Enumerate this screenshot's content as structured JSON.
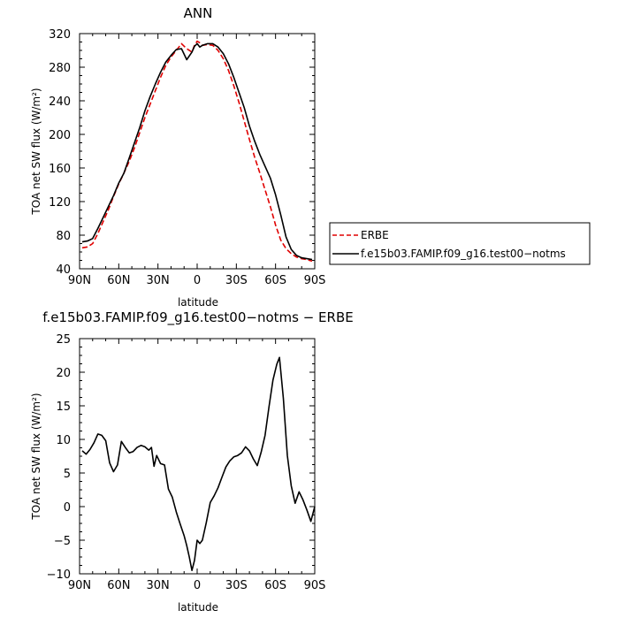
{
  "chart_data": [
    {
      "type": "line",
      "title": "ANN",
      "xlabel": "latitude",
      "ylabel": "TOA net SW flux (W/m²)",
      "xlim": [
        90,
        -90
      ],
      "ylim": [
        40,
        320
      ],
      "x_ticks": [
        "90N",
        "60N",
        "30N",
        "0",
        "30S",
        "60S",
        "90S"
      ],
      "x_tick_values": [
        90,
        60,
        30,
        0,
        -30,
        -60,
        -90
      ],
      "y_ticks": [
        40,
        80,
        120,
        160,
        200,
        240,
        280,
        320
      ],
      "grid": false,
      "legend_position": "right",
      "series": [
        {
          "name": "ERBE",
          "color": "#e00000",
          "dash": "dashed",
          "x": [
            88,
            84,
            80,
            76,
            72,
            68,
            64,
            60,
            56,
            52,
            48,
            44,
            40,
            36,
            32,
            28,
            24,
            20,
            16,
            12,
            8,
            4,
            2,
            0,
            -2,
            -4,
            -8,
            -12,
            -16,
            -20,
            -24,
            -28,
            -32,
            -36,
            -40,
            -44,
            -48,
            -52,
            -56,
            -60,
            -64,
            -68,
            -72,
            -76,
            -80,
            -84,
            -88
          ],
          "values": [
            65,
            66,
            70,
            82,
            96,
            110,
            126,
            141,
            154,
            168,
            184,
            202,
            220,
            236,
            252,
            268,
            282,
            292,
            300,
            308,
            302,
            298,
            306,
            311,
            309,
            306,
            307,
            306,
            300,
            290,
            276,
            258,
            238,
            216,
            194,
            173,
            154,
            134,
            114,
            92,
            74,
            64,
            58,
            54,
            52,
            51,
            49
          ]
        },
        {
          "name": "f.e15b03.FAMIP.f09_g16.test00−notms",
          "color": "#000000",
          "dash": "solid",
          "x": [
            88,
            84,
            80,
            76,
            72,
            68,
            64,
            60,
            56,
            52,
            48,
            44,
            40,
            36,
            32,
            28,
            24,
            20,
            16,
            12,
            8,
            4,
            2,
            0,
            -2,
            -4,
            -8,
            -12,
            -16,
            -20,
            -24,
            -28,
            -32,
            -36,
            -40,
            -44,
            -48,
            -52,
            -56,
            -60,
            -64,
            -68,
            -72,
            -76,
            -80,
            -84,
            -88
          ],
          "values": [
            72,
            73,
            76,
            88,
            101,
            114,
            127,
            142,
            154,
            172,
            190,
            208,
            228,
            245,
            260,
            274,
            286,
            294,
            301,
            302,
            289,
            298,
            305,
            308,
            304,
            306,
            308,
            308,
            304,
            296,
            284,
            268,
            250,
            232,
            210,
            192,
            176,
            162,
            148,
            128,
            104,
            78,
            63,
            56,
            53,
            52,
            51
          ]
        }
      ]
    },
    {
      "type": "line",
      "title": "f.e15b03.FAMIP.f09_g16.test00−notms − ERBE",
      "xlabel": "latitude",
      "ylabel": "TOA net SW flux (W/m²)",
      "xlim": [
        90,
        -90
      ],
      "ylim": [
        -10,
        25
      ],
      "x_ticks": [
        "90N",
        "60N",
        "30N",
        "0",
        "30S",
        "60S",
        "90S"
      ],
      "x_tick_values": [
        90,
        60,
        30,
        0,
        -30,
        -60,
        -90
      ],
      "y_ticks": [
        -10,
        -5,
        0,
        5,
        10,
        15,
        20,
        25
      ],
      "grid": false,
      "series": [
        {
          "color": "#000000",
          "dash": "solid",
          "x": [
            88,
            85,
            82,
            79,
            76,
            73,
            70,
            67,
            64,
            61,
            58,
            55,
            52,
            49,
            46,
            43,
            40,
            37,
            35,
            33,
            31,
            28,
            25,
            22,
            19,
            16,
            13,
            10,
            8,
            6,
            4,
            2,
            0,
            -2,
            -4,
            -7,
            -10,
            -13,
            -16,
            -19,
            -22,
            -25,
            -28,
            -31,
            -34,
            -37,
            -40,
            -43,
            -46,
            -49,
            -52,
            -55,
            -58,
            -61,
            -63,
            -66,
            -69,
            -72,
            -75,
            -78,
            -81,
            -84,
            -87
          ],
          "values": [
            8.3,
            7.8,
            8.5,
            9.5,
            10.8,
            10.6,
            9.8,
            6.5,
            5.2,
            6.2,
            9.7,
            8.8,
            8.0,
            8.2,
            8.8,
            9.1,
            8.9,
            8.4,
            8.8,
            6.0,
            7.6,
            6.4,
            6.2,
            2.6,
            1.4,
            -0.8,
            -2.6,
            -4.3,
            -5.8,
            -7.5,
            -9.5,
            -8.0,
            -5.0,
            -5.5,
            -5.0,
            -2.4,
            0.6,
            1.6,
            2.8,
            4.4,
            5.9,
            6.8,
            7.4,
            7.6,
            8.0,
            8.9,
            8.3,
            7.1,
            6.1,
            8.1,
            10.6,
            14.9,
            18.8,
            21.2,
            22.2,
            16.1,
            7.6,
            3.1,
            0.5,
            2.2,
            1.0,
            -0.5,
            -2.2
          ]
        }
      ],
      "end_value": 0
    }
  ]
}
